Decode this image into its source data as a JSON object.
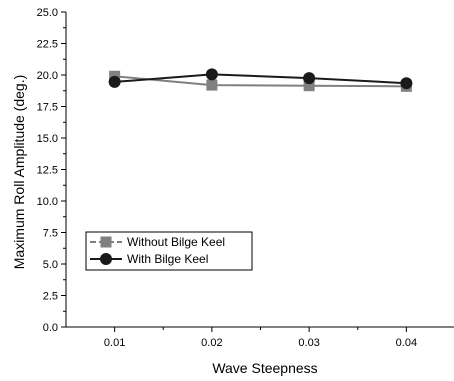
{
  "chart_data": {
    "type": "line",
    "x": [
      0.01,
      0.02,
      0.03,
      0.04
    ],
    "x_tick_labels": [
      "0.01",
      "0.02",
      "0.03",
      "0.04"
    ],
    "xlim": [
      0.005,
      0.045
    ],
    "ylim": [
      0,
      25
    ],
    "y_ticks": [
      0,
      2.5,
      5,
      7.5,
      10,
      12.5,
      15,
      17.5,
      20,
      22.5,
      25
    ],
    "y_tick_labels": [
      "0.0",
      "2.5",
      "5.0",
      "7.5",
      "10.0",
      "12.5",
      "15.0",
      "17.5",
      "20.0",
      "22.5",
      "25.0"
    ],
    "xlabel": "Wave Steepness",
    "ylabel": "Maximum Roll Amplitude (deg.)",
    "legend_position": "lower-left",
    "grid": false,
    "series": [
      {
        "name": "Without Bilge Keel",
        "values": [
          19.9,
          19.2,
          19.15,
          19.1
        ],
        "color": "#808080",
        "marker": "square"
      },
      {
        "name": "With Bilge Keel",
        "values": [
          19.45,
          20.05,
          19.75,
          19.35
        ],
        "color": "#1a1a1a",
        "marker": "circle"
      }
    ]
  }
}
